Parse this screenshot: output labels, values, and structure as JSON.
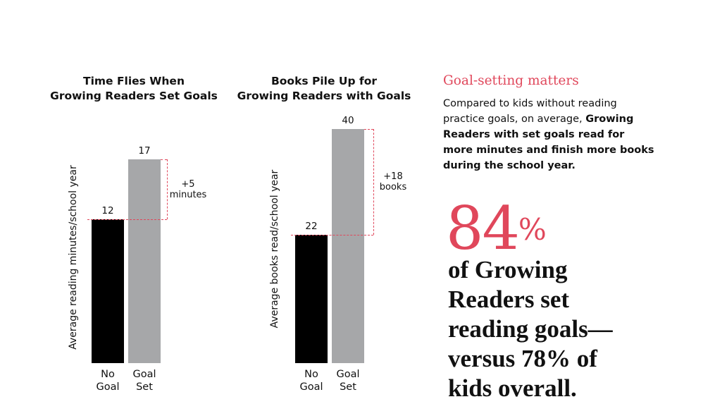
{
  "chart_data": [
    {
      "type": "bar",
      "title": [
        "Time Flies When",
        "Growing Readers Set Goals"
      ],
      "y_label": "Average reading minutes/school year",
      "categories": [
        "No Goal",
        "Goal Set"
      ],
      "values": [
        12,
        17
      ],
      "colors": [
        "#000000",
        "#a6a7a9"
      ],
      "ylim": [
        0,
        20
      ],
      "annotation": "+5 minutes",
      "annotation_color": "#e0475b"
    },
    {
      "type": "bar",
      "title": [
        "Books Pile Up for",
        "Growing Readers with Goals"
      ],
      "y_label": "Average books read/school year",
      "categories": [
        "No Goal",
        "Goal Set"
      ],
      "values": [
        22,
        40
      ],
      "colors": [
        "#000000",
        "#a6a7a9"
      ],
      "ylim": [
        0,
        41
      ],
      "annotation": "+18 books",
      "annotation_color": "#e0475b"
    }
  ],
  "callout": {
    "heading": "Goal-setting matters",
    "body": "Compared to kids without reading practice goals, on average, ",
    "body_bold": "Growing Readers with set goals read for more minutes and finish more books during the school year.",
    "stat": "84",
    "stat_suffix": "%",
    "statement": "of Growing Readers set reading goals—versus 78% of kids overall.",
    "accent_color": "#e0475b"
  }
}
